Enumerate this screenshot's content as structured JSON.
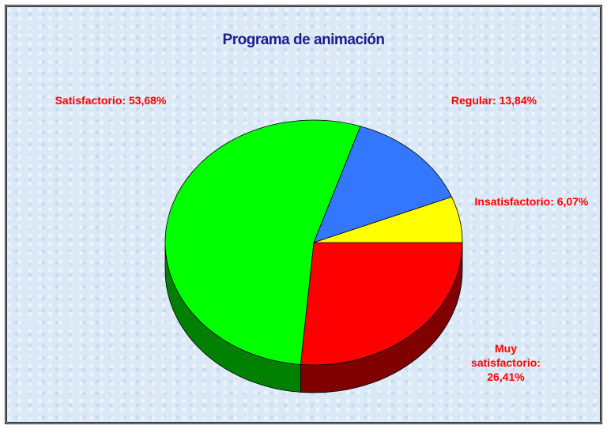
{
  "chart_data": {
    "type": "pie",
    "title": "Programa de animación",
    "categories": [
      "Muy satisfactorio:",
      "Satisfactorio:",
      "Regular:",
      "Insatisfactorio:"
    ],
    "values": [
      26.41,
      53.68,
      13.84,
      6.07
    ],
    "value_labels": [
      "26,41%",
      "53,68%",
      "13,84%",
      "6,07%"
    ],
    "colors": [
      "#ff0000",
      "#00ff00",
      "#3377ff",
      "#ffff00"
    ],
    "side_colors": [
      "#800000",
      "#008000",
      "#1a3c80",
      "#808000"
    ]
  }
}
